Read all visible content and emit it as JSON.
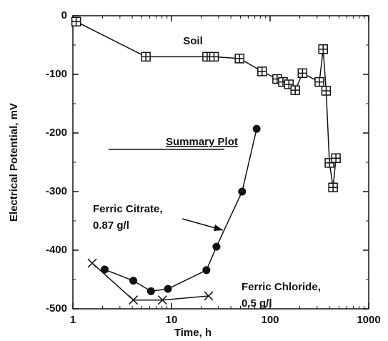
{
  "chart_data": {
    "type": "line",
    "title": "Summary Plot",
    "x_label": "Time, h",
    "y_label": "Electrical Potential, mV",
    "xscale": "log",
    "xlim": [
      1,
      1000
    ],
    "xticks": [
      1,
      10,
      100,
      1000
    ],
    "ylim": [
      -500,
      0
    ],
    "yticks": [
      0,
      -100,
      -200,
      -300,
      -400,
      -500
    ],
    "series": [
      {
        "name": [
          "Soil"
        ],
        "color": "#111",
        "marker": "square-plus",
        "x": [
          1.08,
          5.5,
          23,
          27,
          49,
          83,
          118,
          135,
          155,
          180,
          213,
          316,
          345,
          370,
          400,
          435,
          465
        ],
        "values": [
          -10,
          -70,
          -70,
          -70,
          -73,
          -95,
          -108,
          -113,
          -117,
          -127,
          -98,
          -113,
          -57,
          -128,
          -251,
          -293,
          -243
        ]
      },
      {
        "name": [
          "Ferric Citrate,",
          "0.87 g/l"
        ],
        "color": "#111",
        "marker": "circle",
        "x": [
          2.1,
          4.1,
          6.2,
          9.2,
          22.6,
          28.6,
          52,
          73
        ],
        "values": [
          -433,
          -452,
          -470,
          -466,
          -434,
          -394,
          -300,
          -193
        ]
      },
      {
        "name": [
          "Ferric Chloride,",
          "0.5 g/l"
        ],
        "color": "#111",
        "marker": "x",
        "x": [
          1.57,
          4.1,
          8.1,
          23.8
        ],
        "values": [
          -422,
          -485,
          -485,
          -478
        ]
      }
    ]
  }
}
